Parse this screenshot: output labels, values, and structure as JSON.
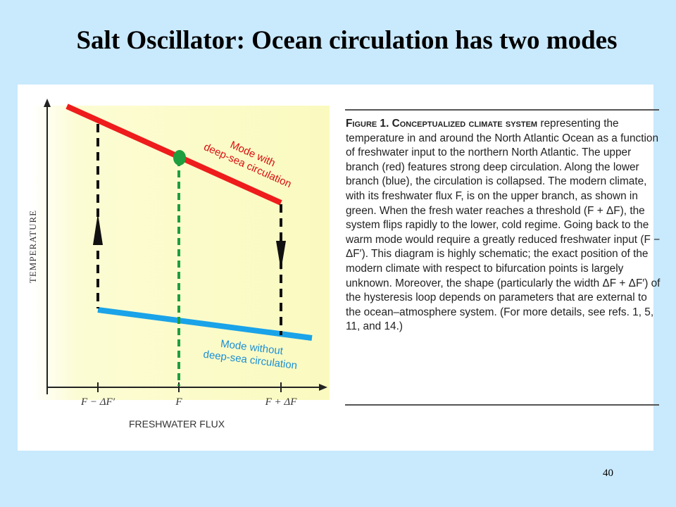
{
  "slide": {
    "title": "Salt Oscillator: Ocean circulation has two modes",
    "page_number": "40"
  },
  "diagram": {
    "y_axis_label": "TEMPERATURE",
    "x_axis_label": "FRESHWATER FLUX",
    "x_ticks": [
      "F − ΔF′",
      "F",
      "F + ΔF"
    ],
    "upper_branch": {
      "label_line1": "Mode with",
      "label_line2": "deep-sea circulation",
      "color": "#ee1c1c"
    },
    "lower_branch": {
      "label_line1": "Mode without",
      "label_line2": "deep-sea circulation",
      "color": "#1aa3e8"
    },
    "modern_climate_color": "#1e9e3e",
    "background_color": "#fcfcd4"
  },
  "caption": {
    "heading": "Figure 1. Conceptualized climate system",
    "body": "representing the temperature in and around the North Atlantic Ocean as a function of freshwater input to the northern North Atlantic. The upper branch (red) features strong deep circulation. Along the lower branch (blue), the circulation is collapsed. The modern climate, with its freshwater flux F, is on the upper branch, as shown in green. When the fresh water reaches a threshold (F + ΔF), the system flips rapidly to the lower, cold regime. Going back to the warm mode would require a greatly reduced freshwater input (F − ΔF′). This diagram is highly schematic; the exact position of the modern climate with respect to bifurcation points is largely unknown. Moreover, the shape (particularly the width ΔF + ΔF′) of the hysteresis loop depends on parameters that are external to the ocean–atmosphere system. (For more details, see refs. 1, 5, 11, and 14.)"
  }
}
